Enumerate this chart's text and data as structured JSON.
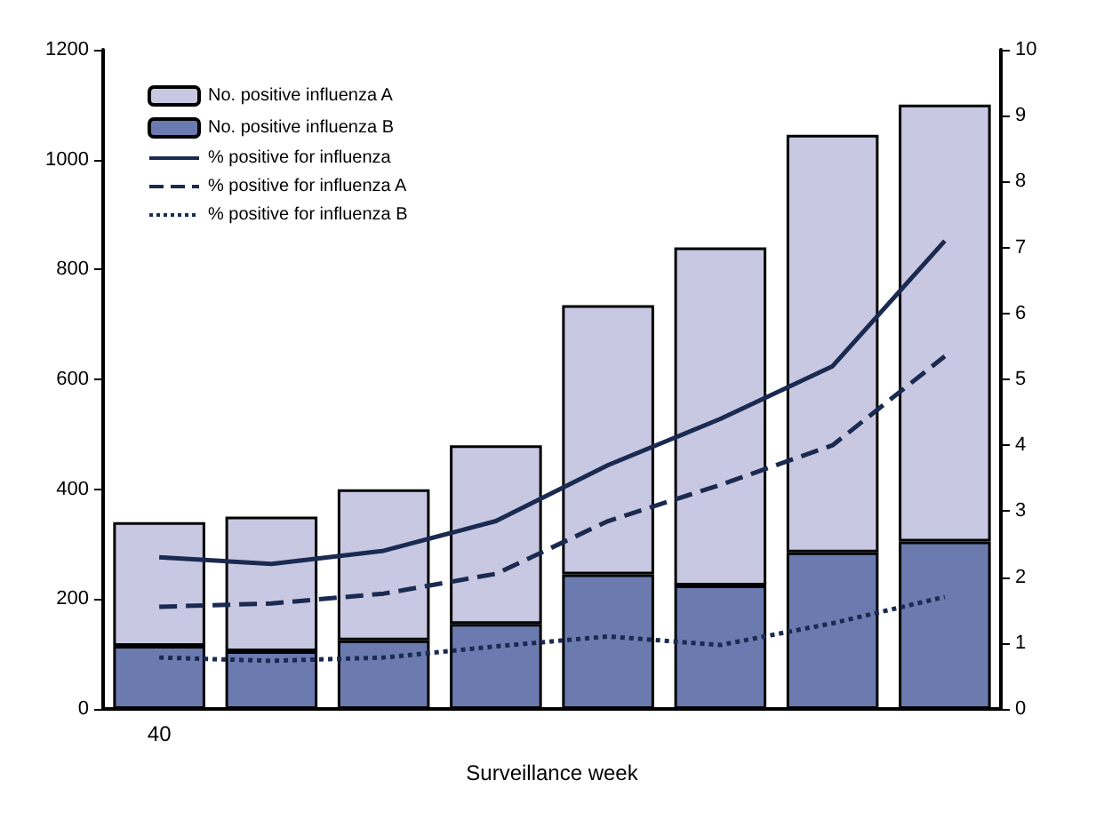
{
  "chart_data": {
    "type": "bar",
    "stacked": true,
    "xlabel": "Surveillance week",
    "categories": [
      "40",
      null,
      null,
      null,
      null,
      null,
      null,
      null
    ],
    "series": [
      {
        "name": "No. positive influenza B",
        "color": "#6b7bb0",
        "values": [
          115,
          105,
          125,
          155,
          245,
          225,
          285,
          305
        ]
      },
      {
        "name": "No. positive influenza A",
        "color": "#c8c8e2",
        "values": [
          225,
          245,
          275,
          325,
          490,
          615,
          760,
          795
        ]
      },
      {
        "name": "% positive for influenza",
        "type": "line",
        "axis": "y2",
        "line_style": "solid",
        "color": "#1a2a50",
        "values": [
          2.3,
          2.2,
          2.4,
          2.85,
          3.7,
          4.4,
          5.2,
          7.1
        ]
      },
      {
        "name": "% positive for influenza A",
        "type": "line",
        "axis": "y2",
        "line_style": "dashed",
        "color": "#1a2a50",
        "values": [
          1.55,
          1.6,
          1.75,
          2.05,
          2.85,
          3.4,
          4.0,
          5.35
        ]
      },
      {
        "name": "% positive for influenza B",
        "type": "line",
        "axis": "y2",
        "line_style": "dotted",
        "color": "#1a2a50",
        "values": [
          0.78,
          0.73,
          0.78,
          0.95,
          1.1,
          0.97,
          1.3,
          1.7
        ]
      }
    ],
    "ylim": [
      0,
      1200
    ],
    "yticks": [
      0,
      200,
      400,
      600,
      800,
      1000,
      1200
    ],
    "y2lim": [
      0,
      10
    ],
    "y2ticks": [
      0,
      1,
      2,
      3,
      4,
      5,
      6,
      7,
      8,
      9,
      10
    ],
    "grid": false,
    "legend": "top left",
    "marker": "none"
  }
}
